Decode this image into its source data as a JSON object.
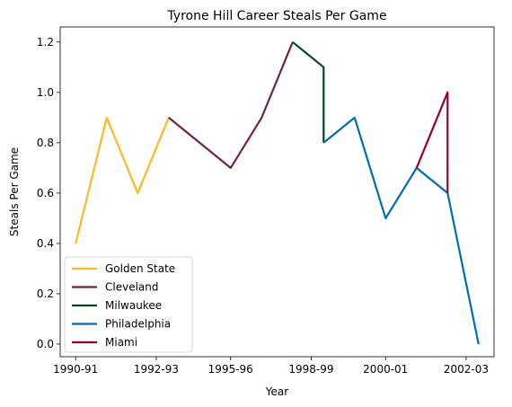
{
  "chart_data": {
    "type": "line",
    "title": "Tyrone Hill Career Steals Per Game",
    "xlabel": "Year",
    "ylabel": "Steals Per Game",
    "ylim": [
      -0.05,
      1.26
    ],
    "xlim": [
      -0.5,
      13.5
    ],
    "yticks": [
      0.0,
      0.2,
      0.4,
      0.6,
      0.8,
      1.0,
      1.2
    ],
    "ytick_labels": [
      "0.0",
      "0.2",
      "0.4",
      "0.6",
      "0.8",
      "1.0",
      "1.2"
    ],
    "xticks": [
      0,
      2.6,
      5,
      7.6,
      10,
      12.6
    ],
    "xtick_labels": [
      "1990-91",
      "1992-93",
      "1995-96",
      "1998-99",
      "2000-01",
      "2002-03"
    ],
    "grid": false,
    "legend_position": "lower-left",
    "series": [
      {
        "name": "Golden State",
        "color": "#FDB927",
        "x": [
          0,
          1,
          2,
          3
        ],
        "y": [
          0.4,
          0.9,
          0.6,
          0.9
        ]
      },
      {
        "name": "Cleveland",
        "color": "#6F263D",
        "x": [
          3,
          5,
          6,
          7
        ],
        "y": [
          0.9,
          0.7,
          0.9,
          1.2
        ]
      },
      {
        "name": "Milwaukee",
        "color": "#00471B",
        "x": [
          7,
          8,
          8
        ],
        "y": [
          1.2,
          1.1,
          0.8
        ]
      },
      {
        "name": "Philadelphia",
        "color": "#006BB6",
        "x": [
          8,
          9,
          10,
          11,
          12,
          13
        ],
        "y": [
          0.8,
          0.9,
          0.5,
          0.7,
          0.6,
          0.0
        ]
      },
      {
        "name": "Miami",
        "color": "#98002E",
        "x": [
          11,
          12,
          12
        ],
        "y": [
          0.7,
          1.0,
          0.6
        ]
      }
    ]
  }
}
